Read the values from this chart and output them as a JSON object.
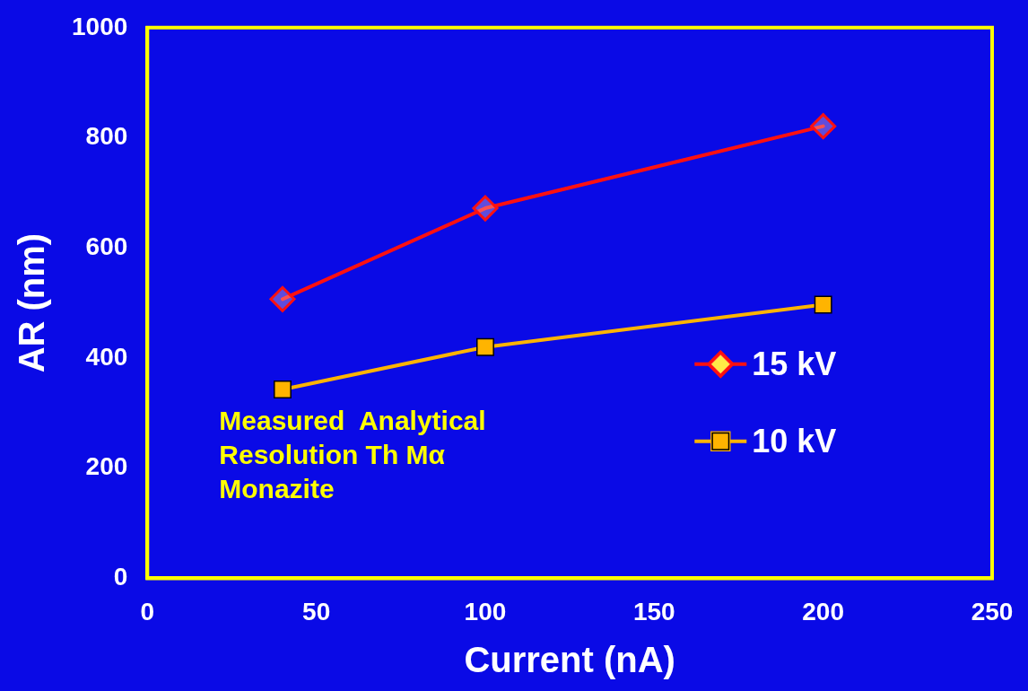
{
  "chart_data": {
    "type": "line",
    "xlabel": "Current (nA)",
    "ylabel": "AR (nm)",
    "x": [
      40,
      100,
      200
    ],
    "series": [
      {
        "name": "15 kV",
        "color": "#ff1010",
        "values": [
          507,
          672,
          821
        ],
        "marker": "diamond"
      },
      {
        "name": "10 kV",
        "color": "#ffb400",
        "values": [
          343,
          420,
          497
        ],
        "marker": "square"
      }
    ],
    "xlim": [
      0,
      250
    ],
    "xticks": [
      0,
      50,
      100,
      150,
      200,
      250
    ],
    "ylim": [
      0,
      1000
    ],
    "yticks": [
      0,
      200,
      400,
      600,
      800,
      1000
    ],
    "grid": false,
    "legend": "right",
    "line_style": "solid",
    "annotations": [
      "Measured  Analytical\nResolution Th Mα\nMonazite"
    ]
  }
}
